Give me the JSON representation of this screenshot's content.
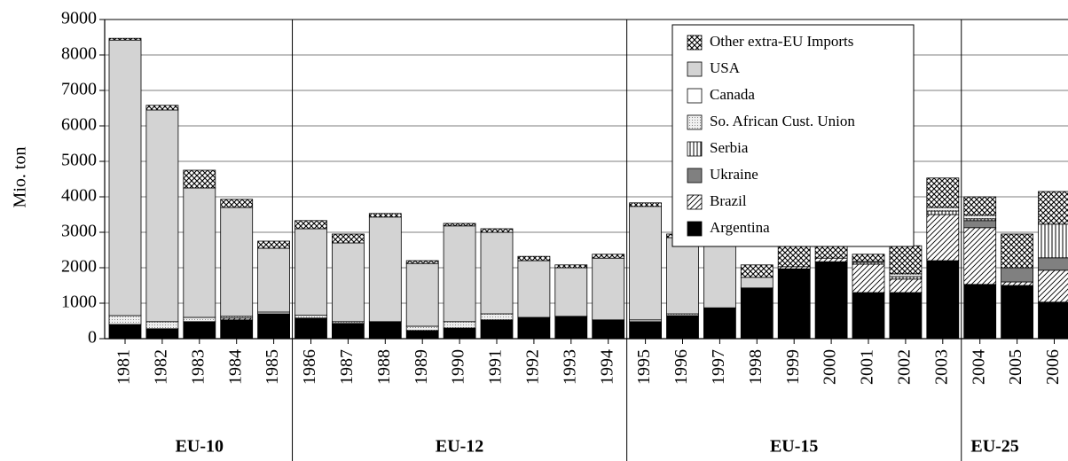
{
  "chart_data": {
    "type": "stacked-bar",
    "y_label": "Mio. ton",
    "categories": [
      "1981",
      "1982",
      "1983",
      "1984",
      "1985",
      "1986",
      "1987",
      "1988",
      "1989",
      "1990",
      "1991",
      "1992",
      "1993",
      "1994",
      "1995",
      "1996",
      "1997",
      "1998",
      "1999",
      "2000",
      "2001",
      "2002",
      "2003",
      "2004",
      "2005",
      "2006"
    ],
    "groups": [
      {
        "label": "EU-10",
        "from": "1981",
        "to": "1985"
      },
      {
        "label": "EU-12",
        "from": "1986",
        "to": "1994"
      },
      {
        "label": "EU-15",
        "from": "1995",
        "to": "2003"
      },
      {
        "label": "EU-25",
        "from": "2004",
        "to": "2006"
      }
    ],
    "series": [
      {
        "name": "Argentina",
        "color": "#000000",
        "pattern": "solid",
        "values": [
          400,
          280,
          480,
          530,
          700,
          580,
          430,
          480,
          230,
          300,
          530,
          600,
          630,
          530,
          480,
          650,
          870,
          1430,
          1970,
          2170,
          1300,
          1300,
          2200,
          1530,
          1500,
          1030
        ]
      },
      {
        "name": "Brazil",
        "color": "#000000",
        "pattern": "diagonal",
        "values": [
          0,
          0,
          0,
          50,
          0,
          0,
          0,
          0,
          0,
          0,
          0,
          0,
          0,
          0,
          0,
          0,
          0,
          0,
          60,
          100,
          800,
          380,
          1300,
          1600,
          100,
          900
        ]
      },
      {
        "name": "Ukraine",
        "color": "#808080",
        "pattern": "solid",
        "values": [
          0,
          0,
          0,
          0,
          0,
          0,
          0,
          0,
          0,
          0,
          0,
          0,
          0,
          0,
          0,
          0,
          0,
          0,
          0,
          0,
          0,
          0,
          0,
          200,
          400,
          350
        ]
      },
      {
        "name": "Serbia",
        "color": "#000000",
        "pattern": "vertical",
        "values": [
          0,
          0,
          0,
          0,
          0,
          0,
          0,
          0,
          0,
          0,
          0,
          0,
          0,
          0,
          0,
          0,
          0,
          0,
          0,
          0,
          50,
          70,
          100,
          50,
          0,
          950
        ]
      },
      {
        "name": "So. African Cust. Union",
        "color": "#bfbfbf",
        "pattern": "dots",
        "values": [
          250,
          200,
          120,
          50,
          50,
          80,
          50,
          0,
          120,
          180,
          170,
          0,
          0,
          0,
          50,
          50,
          0,
          0,
          0,
          0,
          30,
          80,
          100,
          100,
          0,
          0
        ]
      },
      {
        "name": "Canada",
        "color": "#ffffff",
        "pattern": "solid",
        "values": [
          0,
          0,
          0,
          0,
          0,
          0,
          0,
          0,
          0,
          0,
          0,
          0,
          0,
          0,
          0,
          0,
          0,
          0,
          0,
          0,
          0,
          0,
          0,
          0,
          0,
          0
        ]
      },
      {
        "name": "USA",
        "color": "#d3d3d3",
        "pattern": "solid",
        "values": [
          7770,
          5970,
          3650,
          3070,
          1800,
          2440,
          2220,
          2950,
          1770,
          2700,
          2300,
          1600,
          1370,
          1740,
          3200,
          2150,
          1780,
          300,
          0,
          0,
          0,
          0,
          0,
          0,
          0,
          0
        ]
      },
      {
        "name": "Other extra-EU Imports",
        "color": "#000000",
        "pattern": "crosshatch",
        "values": [
          50,
          130,
          500,
          230,
          200,
          230,
          250,
          100,
          80,
          70,
          100,
          120,
          80,
          110,
          100,
          100,
          100,
          350,
          620,
          480,
          200,
          790,
          830,
          520,
          950,
          920
        ]
      }
    ],
    "ylim": [
      0,
      9000
    ],
    "yticks": [
      0,
      1000,
      2000,
      3000,
      4000,
      5000,
      6000,
      7000,
      8000,
      9000
    ],
    "grid": true,
    "legend": "upper-right"
  }
}
